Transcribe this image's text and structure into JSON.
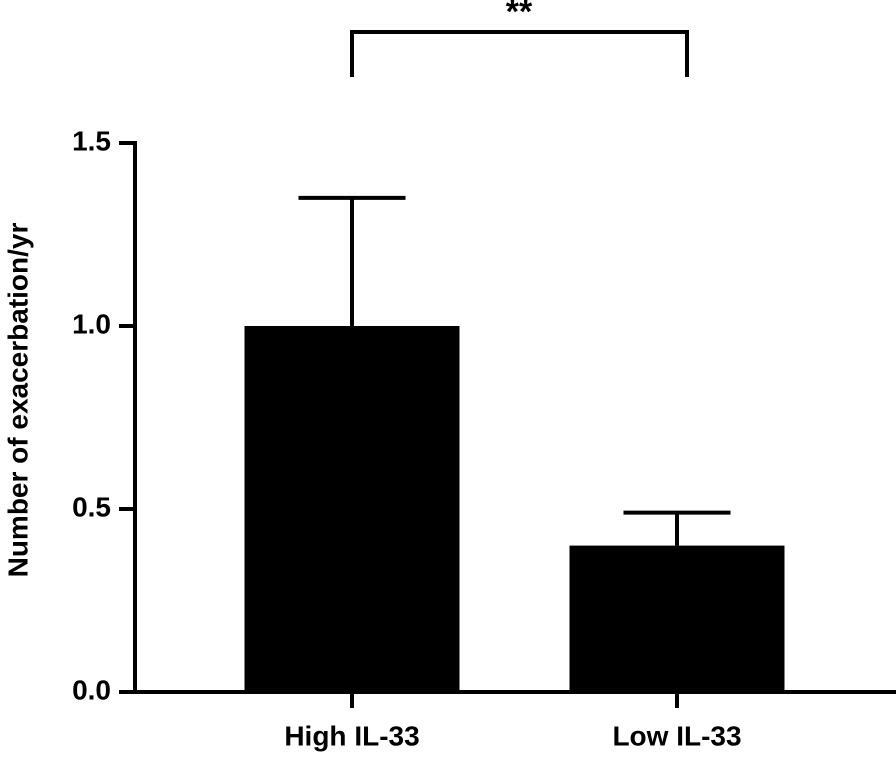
{
  "chart_data": {
    "type": "bar",
    "y_label": "Number of exacerbation/yr",
    "categories": [
      "High IL-33",
      "Low IL-33"
    ],
    "values": [
      1.0,
      0.4
    ],
    "errors": [
      0.35,
      0.09
    ],
    "color": "#000000",
    "ylim": [
      0,
      1.5
    ],
    "yticks": [
      {
        "value": 0,
        "label": "0.0"
      },
      0.5,
      {
        "value": 1,
        "label": "1.0"
      },
      1.5
    ],
    "annotation": "**"
  }
}
